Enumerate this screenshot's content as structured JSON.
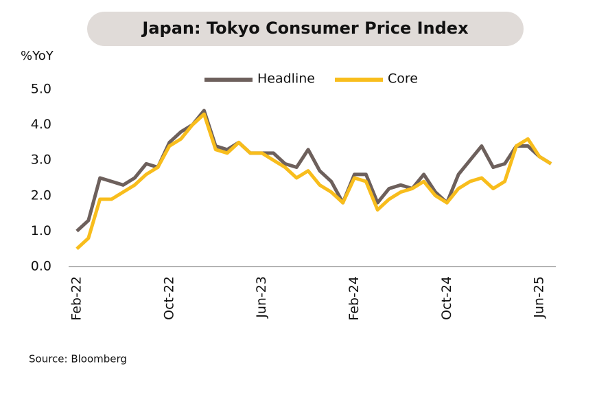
{
  "chart_data": {
    "type": "line",
    "title": "Japan: Tokyo Consumer Price Index",
    "y_label": "%YoY",
    "source": "Source: Bloomberg",
    "categories": [
      "Feb-22",
      null,
      null,
      null,
      null,
      null,
      null,
      null,
      "Oct-22",
      null,
      null,
      null,
      null,
      null,
      null,
      null,
      "Jun-23",
      null,
      null,
      null,
      null,
      null,
      null,
      null,
      "Feb-24",
      null,
      null,
      null,
      null,
      null,
      null,
      null,
      "Oct-24",
      null,
      null,
      null,
      null,
      null,
      null,
      null,
      "Jun-25",
      null
    ],
    "series": [
      {
        "name": "Headline",
        "color": "#6d605c",
        "values": [
          1.0,
          1.3,
          2.5,
          2.4,
          2.3,
          2.5,
          2.9,
          2.8,
          3.5,
          3.8,
          4.0,
          4.4,
          3.4,
          3.3,
          3.5,
          3.2,
          3.2,
          3.2,
          2.9,
          2.8,
          3.3,
          2.7,
          2.4,
          1.8,
          2.6,
          2.6,
          1.8,
          2.2,
          2.3,
          2.2,
          2.6,
          2.1,
          1.8,
          2.6,
          3.0,
          3.4,
          2.8,
          2.9,
          3.4,
          3.4,
          3.1,
          2.9
        ]
      },
      {
        "name": "Core",
        "color": "#f8bd1c",
        "values": [
          0.5,
          0.8,
          1.9,
          1.9,
          2.1,
          2.3,
          2.6,
          2.8,
          3.4,
          3.6,
          4.0,
          4.3,
          3.3,
          3.2,
          3.5,
          3.2,
          3.2,
          3.0,
          2.8,
          2.5,
          2.7,
          2.3,
          2.1,
          1.8,
          2.5,
          2.4,
          1.6,
          1.9,
          2.1,
          2.2,
          2.4,
          2.0,
          1.8,
          2.2,
          2.4,
          2.5,
          2.2,
          2.4,
          3.4,
          3.6,
          3.1,
          2.9
        ]
      }
    ],
    "ylim": [
      0,
      5
    ],
    "yticks": [
      {
        "value": 0,
        "label": "0.0"
      },
      {
        "value": 1,
        "label": "1.0"
      },
      {
        "value": 2,
        "label": "2.0"
      },
      {
        "value": 3,
        "label": "3.0"
      },
      {
        "value": 4,
        "label": "4.0"
      },
      {
        "value": 5,
        "label": "5.0"
      }
    ],
    "legend": "top"
  }
}
